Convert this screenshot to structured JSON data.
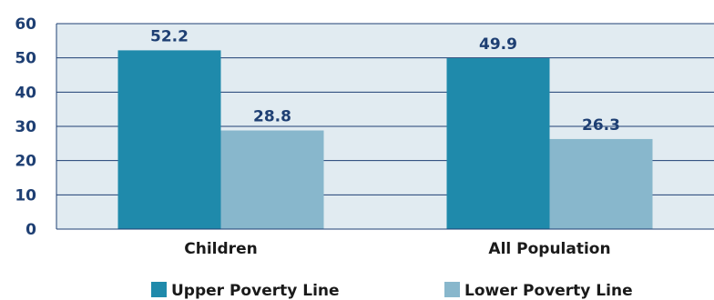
{
  "chart_data": {
    "type": "bar",
    "categories": [
      "Children",
      "All Population"
    ],
    "series": [
      {
        "name": "Upper Poverty Line",
        "values": [
          52.2,
          49.9
        ],
        "color": "#1f8aab"
      },
      {
        "name": "Lower Poverty Line",
        "values": [
          28.8,
          26.3
        ],
        "color": "#88b7cc"
      }
    ],
    "data_labels": [
      [
        "52.2",
        "49.9"
      ],
      [
        "28.8",
        "26.3"
      ]
    ],
    "ylim": [
      0,
      60
    ],
    "yticks": [
      "0",
      "10",
      "20",
      "30",
      "40",
      "50",
      "60"
    ],
    "grid": true,
    "legend_position": "bottom",
    "plot_background": "#e1ebf1",
    "label_color": "#1e3f73"
  }
}
